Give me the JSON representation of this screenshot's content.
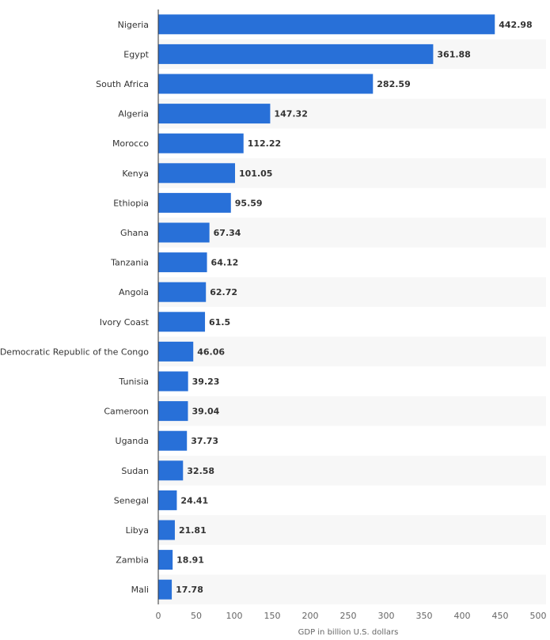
{
  "chart_data": {
    "type": "bar",
    "orientation": "horizontal",
    "categories": [
      "Nigeria",
      "Egypt",
      "South Africa",
      "Algeria",
      "Morocco",
      "Kenya",
      "Ethiopia",
      "Ghana",
      "Tanzania",
      "Angola",
      "Ivory Coast",
      "Democratic Republic of the Congo",
      "Tunisia",
      "Cameroon",
      "Uganda",
      "Sudan",
      "Senegal",
      "Libya",
      "Zambia",
      "Mali"
    ],
    "values": [
      442.98,
      361.88,
      282.59,
      147.32,
      112.22,
      101.05,
      95.59,
      67.34,
      64.12,
      62.72,
      61.5,
      46.06,
      39.23,
      39.04,
      37.73,
      32.58,
      24.41,
      21.81,
      18.91,
      17.78
    ],
    "value_labels": [
      "442.98",
      "361.88",
      "282.59",
      "147.32",
      "112.22",
      "101.05",
      "95.59",
      "67.34",
      "64.12",
      "62.72",
      "61.5",
      "46.06",
      "39.23",
      "39.04",
      "37.73",
      "32.58",
      "24.41",
      "21.81",
      "18.91",
      "17.78"
    ],
    "xlabel": "GDP in billion U.S. dollars",
    "ylabel": "",
    "xlim": [
      0,
      500
    ],
    "ticks": [
      0,
      50,
      100,
      150,
      200,
      250,
      300,
      350,
      400,
      450,
      500
    ],
    "tick_labels": [
      "0",
      "50",
      "100",
      "150",
      "200",
      "250",
      "300",
      "350",
      "400",
      "450",
      "500"
    ],
    "grid": "alternating row bands",
    "legend": "none",
    "colors": {
      "bar": "#2870d8",
      "band": "#f7f7f7",
      "axis": "#333333"
    }
  }
}
